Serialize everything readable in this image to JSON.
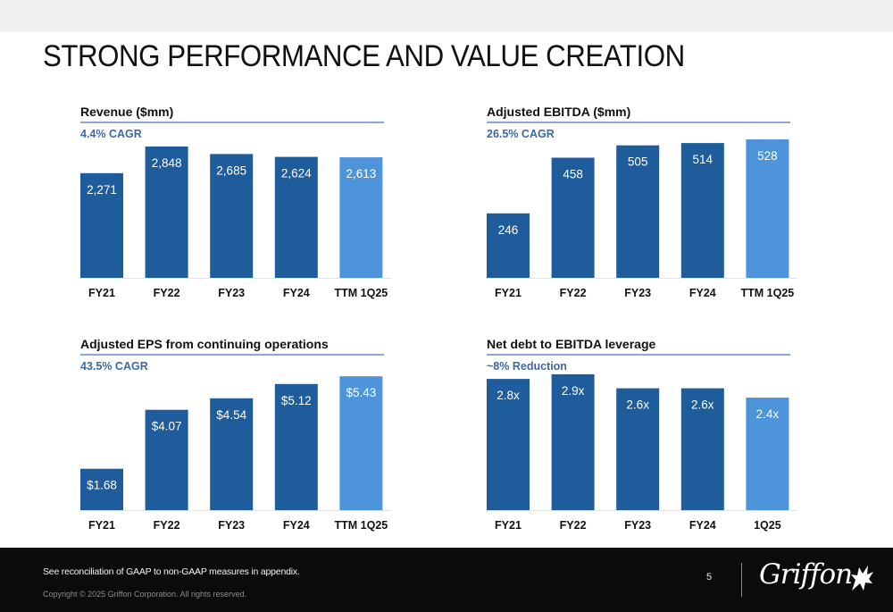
{
  "slide": {
    "title": "STRONG PERFORMANCE AND VALUE CREATION"
  },
  "colors": {
    "dark_bar": "#1f5c9b",
    "light_bar": "#4e94db",
    "accent_text": "#3a6aa6",
    "rule": "#8ea6cf"
  },
  "chart_data": [
    {
      "type": "bar",
      "title": "Revenue ($mm)",
      "subtitle": "4.4% CAGR",
      "categories": [
        "FY21",
        "FY22",
        "FY23",
        "FY24",
        "TTM 1Q25"
      ],
      "values": [
        2271,
        2848,
        2685,
        2624,
        2613
      ],
      "labels": [
        "2,271",
        "2,848",
        "2,685",
        "2,624",
        "2,613"
      ],
      "highlight_last": true,
      "ylim": [
        0,
        3100
      ],
      "grid": false
    },
    {
      "type": "bar",
      "title": "Adjusted EBITDA ($mm)",
      "subtitle": "26.5% CAGR",
      "categories": [
        "FY21",
        "FY22",
        "FY23",
        "FY24",
        "TTM 1Q25"
      ],
      "values": [
        246,
        458,
        505,
        514,
        528
      ],
      "labels": [
        "246",
        "458",
        "505",
        "514",
        "528"
      ],
      "highlight_last": true,
      "ylim": [
        0,
        545
      ],
      "grid": false
    },
    {
      "type": "bar",
      "title": "Adjusted EPS from continuing operations",
      "subtitle": "43.5% CAGR",
      "categories": [
        "FY21",
        "FY22",
        "FY23",
        "FY24",
        "TTM 1Q25"
      ],
      "values": [
        1.68,
        4.07,
        4.54,
        5.12,
        5.43
      ],
      "labels": [
        "$1.68",
        "$4.07",
        "$4.54",
        "$5.12",
        "$5.43"
      ],
      "highlight_last": true,
      "ylim": [
        0,
        5.8
      ],
      "grid": false
    },
    {
      "type": "bar",
      "title": "Net debt to EBITDA leverage",
      "subtitle": "~8% Reduction",
      "categories": [
        "FY21",
        "FY22",
        "FY23",
        "FY24",
        "1Q25"
      ],
      "values": [
        2.8,
        2.9,
        2.6,
        2.6,
        2.4
      ],
      "labels": [
        "2.8x",
        "2.9x",
        "2.6x",
        "2.6x",
        "2.4x"
      ],
      "highlight_last": true,
      "ylim": [
        0,
        3.05
      ],
      "grid": false
    }
  ],
  "footer": {
    "footnote": "See reconciliation of GAAP to non-GAAP measures in appendix.",
    "copyright": "Copyright © 2025 Griffon Corporation. All rights reserved.",
    "page_number": "5",
    "logo_text": "Griffon"
  }
}
